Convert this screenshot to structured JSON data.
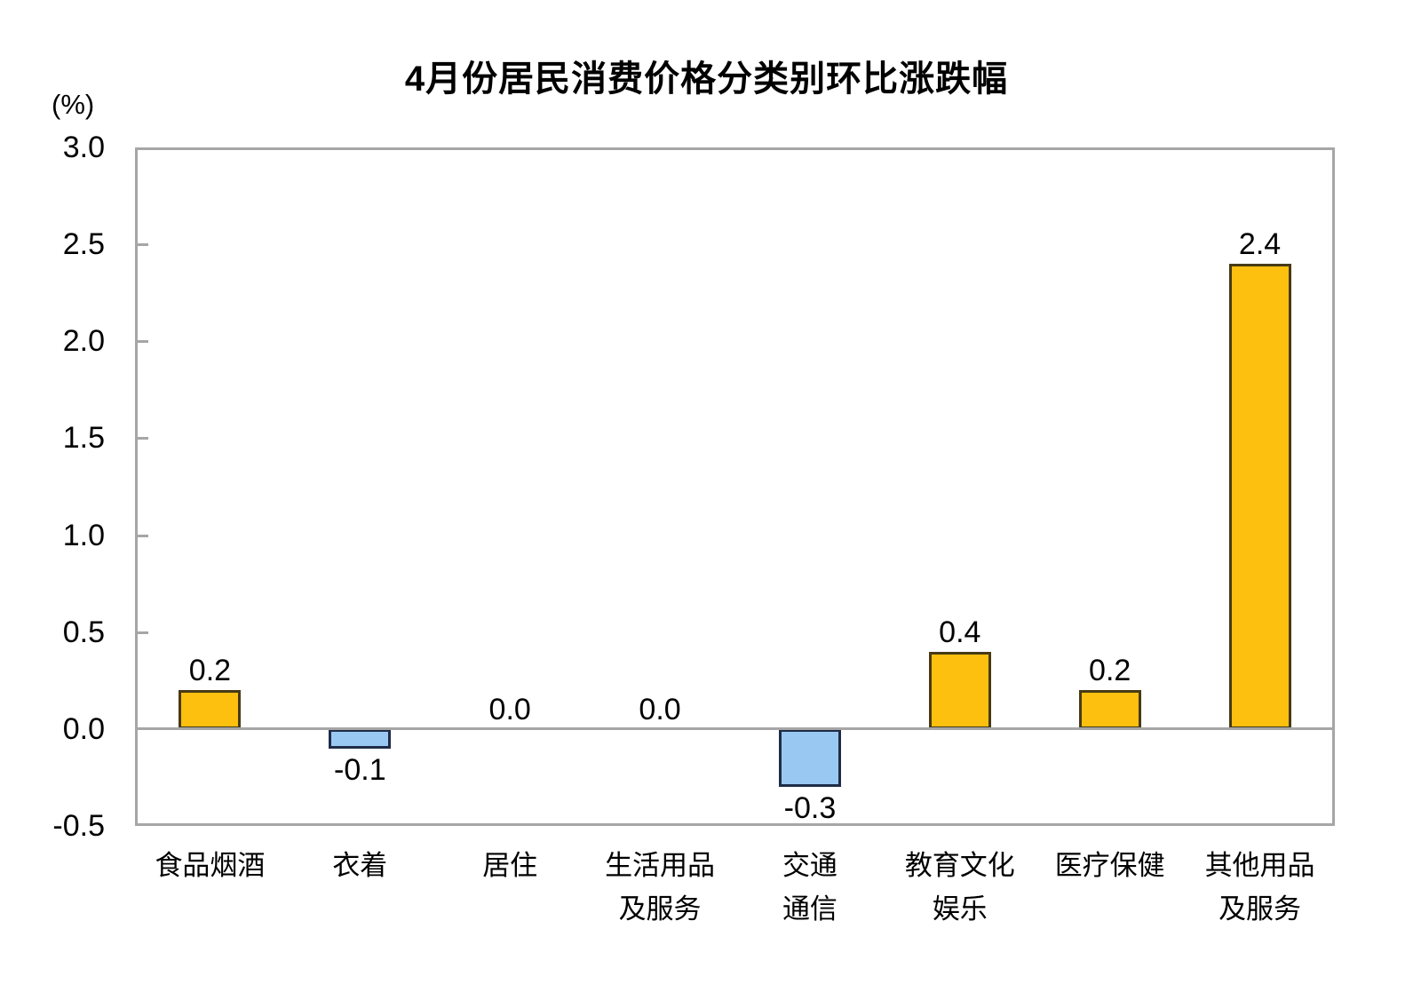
{
  "chart_data": {
    "type": "bar",
    "title": "4月份居民消费价格分类别环比涨跌幅",
    "unit_label": "(%)",
    "xlabel": "",
    "ylabel": "(%)",
    "categories": [
      "食品烟酒",
      "衣着",
      "居住",
      "生活用品及服务",
      "交通通信",
      "教育文化娱乐",
      "医疗保健",
      "其他用品及服务"
    ],
    "category_lines": [
      [
        "食品烟酒"
      ],
      [
        "衣着"
      ],
      [
        "居住"
      ],
      [
        "生活用品",
        "及服务"
      ],
      [
        "交通",
        "通信"
      ],
      [
        "教育文化",
        "娱乐"
      ],
      [
        "医疗保健"
      ],
      [
        "其他用品",
        "及服务"
      ]
    ],
    "values": [
      0.2,
      -0.1,
      0.0,
      0.0,
      -0.3,
      0.4,
      0.2,
      2.4
    ],
    "value_labels": [
      "0.2",
      "-0.1",
      "0.0",
      "0.0",
      "-0.3",
      "0.4",
      "0.2",
      "2.4"
    ],
    "ylim": [
      -0.5,
      3.0
    ],
    "ytick_step": 0.5,
    "yticks": [
      {
        "value": 3.0,
        "label": "3.0"
      },
      {
        "value": 2.5,
        "label": "2.5"
      },
      {
        "value": 2.0,
        "label": "2.0"
      },
      {
        "value": 1.5,
        "label": "1.5"
      },
      {
        "value": 1.0,
        "label": "1.0"
      },
      {
        "value": 0.5,
        "label": "0.5"
      },
      {
        "value": 0.0,
        "label": "0.0"
      },
      {
        "value": -0.5,
        "label": "-0.5"
      }
    ],
    "grid": "zero-line-only",
    "legend": null,
    "colors": {
      "positive_fill": "#FDC00F",
      "positive_border": "#473A15",
      "negative_fill": "#99C9F2",
      "negative_border": "#1F2C48",
      "axis": "#A6A6A6",
      "text": "#000000"
    }
  }
}
